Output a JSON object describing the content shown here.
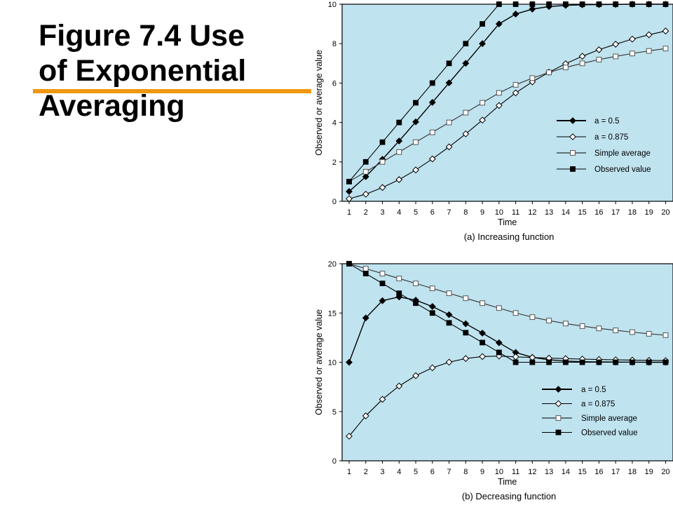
{
  "slide": {
    "title_lines": [
      "Figure 7.4 Use",
      "of Exponential",
      "Averaging"
    ],
    "accent_color": "#f0960f"
  },
  "chart_data": [
    {
      "type": "line",
      "caption": "(a) Increasing function",
      "xlabel": "Time",
      "ylabel": "Observed or average value",
      "x": [
        1,
        2,
        3,
        4,
        5,
        6,
        7,
        8,
        9,
        10,
        11,
        12,
        13,
        14,
        15,
        16,
        17,
        18,
        19,
        20
      ],
      "xlim": [
        1,
        20
      ],
      "ylim": [
        0,
        10
      ],
      "yticks": [
        0,
        2,
        4,
        6,
        8,
        10
      ],
      "grid": false,
      "background": "#bfe3ef",
      "legend_position": "middle-right",
      "series": [
        {
          "name": "a = 0.5",
          "marker": "filled-diamond",
          "values": [
            0.5,
            1.25,
            2.13,
            3.06,
            4.03,
            5.02,
            6.01,
            7.0,
            8.0,
            9.0,
            9.5,
            9.75,
            9.88,
            9.94,
            9.97,
            9.98,
            9.99,
            10.0,
            10.0,
            10.0
          ]
        },
        {
          "name": "a = 0.875",
          "marker": "open-diamond",
          "values": [
            0.13,
            0.36,
            0.7,
            1.1,
            1.59,
            2.15,
            2.76,
            3.42,
            4.12,
            4.86,
            5.5,
            6.06,
            6.55,
            6.98,
            7.36,
            7.69,
            7.97,
            8.23,
            8.45,
            8.64
          ]
        },
        {
          "name": "Simple average",
          "marker": "open-square",
          "values": [
            1.0,
            1.5,
            2.0,
            2.5,
            3.0,
            3.5,
            4.0,
            4.5,
            5.0,
            5.5,
            5.91,
            6.25,
            6.54,
            6.79,
            7.0,
            7.19,
            7.35,
            7.5,
            7.63,
            7.75
          ]
        },
        {
          "name": "Observed value",
          "marker": "filled-square",
          "values": [
            1,
            2,
            3,
            4,
            5,
            6,
            7,
            8,
            9,
            10,
            10,
            10,
            10,
            10,
            10,
            10,
            10,
            10,
            10,
            10
          ]
        }
      ]
    },
    {
      "type": "line",
      "caption": "(b) Decreasing function",
      "xlabel": "Time",
      "ylabel": "Observed or average value",
      "x": [
        1,
        2,
        3,
        4,
        5,
        6,
        7,
        8,
        9,
        10,
        11,
        12,
        13,
        14,
        15,
        16,
        17,
        18,
        19,
        20
      ],
      "xlim": [
        1,
        20
      ],
      "ylim": [
        0,
        20
      ],
      "yticks": [
        0,
        5,
        10,
        15,
        20
      ],
      "grid": false,
      "background": "#bfe3ef",
      "legend_position": "bottom-right",
      "series": [
        {
          "name": "a = 0.5",
          "marker": "filled-diamond",
          "values": [
            10,
            14.5,
            16.25,
            16.63,
            16.3,
            15.66,
            14.83,
            13.91,
            12.96,
            11.98,
            10.99,
            10.5,
            10.25,
            10.12,
            10.06,
            10.03,
            10.02,
            10.01,
            10.0,
            10.0
          ]
        },
        {
          "name": "a = 0.875",
          "marker": "open-diamond",
          "values": [
            2.5,
            4.56,
            6.24,
            7.59,
            8.64,
            9.44,
            10.01,
            10.38,
            10.58,
            10.63,
            10.55,
            10.48,
            10.42,
            10.37,
            10.32,
            10.28,
            10.25,
            10.22,
            10.19,
            10.17
          ]
        },
        {
          "name": "Simple average",
          "marker": "open-square",
          "values": [
            20,
            19.5,
            19.0,
            18.5,
            18.0,
            17.5,
            17.0,
            16.5,
            16.0,
            15.5,
            15.0,
            14.58,
            14.23,
            13.93,
            13.67,
            13.44,
            13.24,
            13.06,
            12.89,
            12.75
          ]
        },
        {
          "name": "Observed value",
          "marker": "filled-square",
          "values": [
            20,
            19,
            18,
            17,
            16,
            15,
            14,
            13,
            12,
            11,
            10,
            10,
            10,
            10,
            10,
            10,
            10,
            10,
            10,
            10
          ]
        }
      ]
    }
  ]
}
